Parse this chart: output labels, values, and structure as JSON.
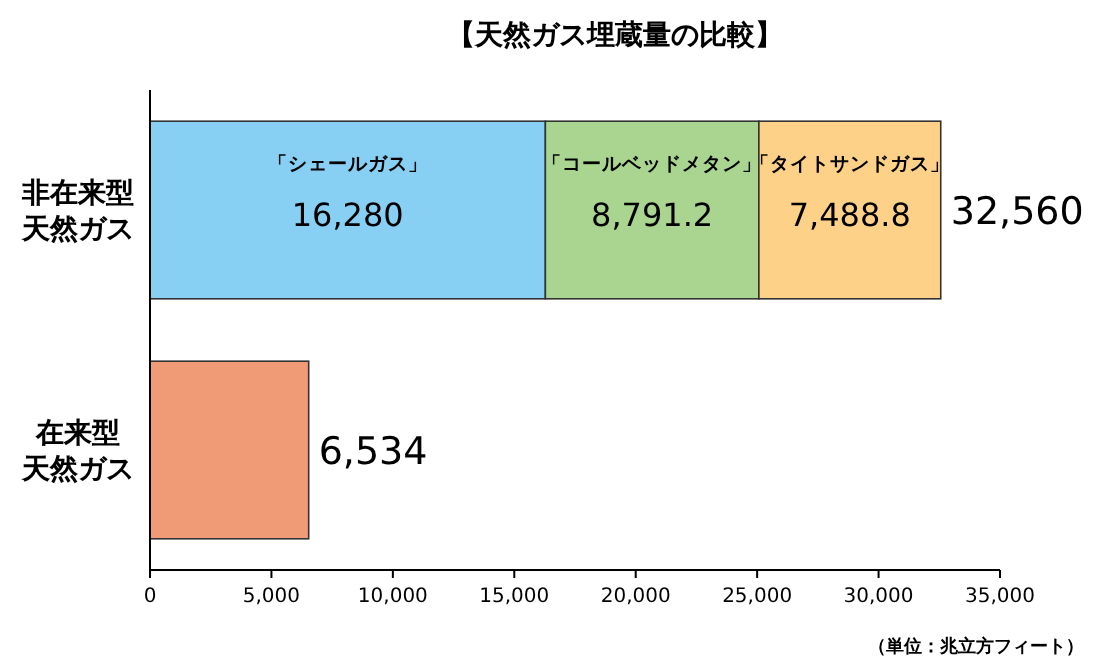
{
  "chart_data": {
    "type": "bar",
    "orientation": "horizontal",
    "stacked": true,
    "title": "【天然ガス埋蔵量の比較】",
    "categories": [
      "非在来型天然ガス",
      "在来型天然ガス"
    ],
    "series": [
      {
        "name": "「シェールガス」",
        "color": "#87cff3",
        "values": [
          16280,
          null
        ],
        "value_labels": [
          "16,280",
          null
        ]
      },
      {
        "name": "「コールベッドメタン」",
        "color": "#a9d590",
        "values": [
          8791.2,
          null
        ],
        "value_labels": [
          "8,791.2",
          null
        ]
      },
      {
        "name": "「タイトサンドガス」",
        "color": "#fdd187",
        "values": [
          7488.8,
          null
        ],
        "value_labels": [
          "7,488.8",
          null
        ]
      },
      {
        "color": "#f19b76",
        "values": [
          null,
          6534
        ],
        "value_labels": [
          null,
          "6,534"
        ]
      }
    ],
    "totals": [
      "32,560",
      null
    ],
    "xlim": [
      0,
      35000
    ],
    "xticks": [
      0,
      {
        "value": 5000,
        "label": "5,000"
      },
      {
        "value": 10000,
        "label": "10,000"
      },
      {
        "value": 15000,
        "label": "15,000"
      },
      {
        "value": 20000,
        "label": "20,000"
      },
      {
        "value": 25000,
        "label": "25,000"
      },
      {
        "value": 30000,
        "label": "30,000"
      },
      {
        "value": 35000,
        "label": "35,000"
      }
    ],
    "annotations": [
      "（単位：兆立方フィート）"
    ],
    "grid": false,
    "legend": false
  }
}
